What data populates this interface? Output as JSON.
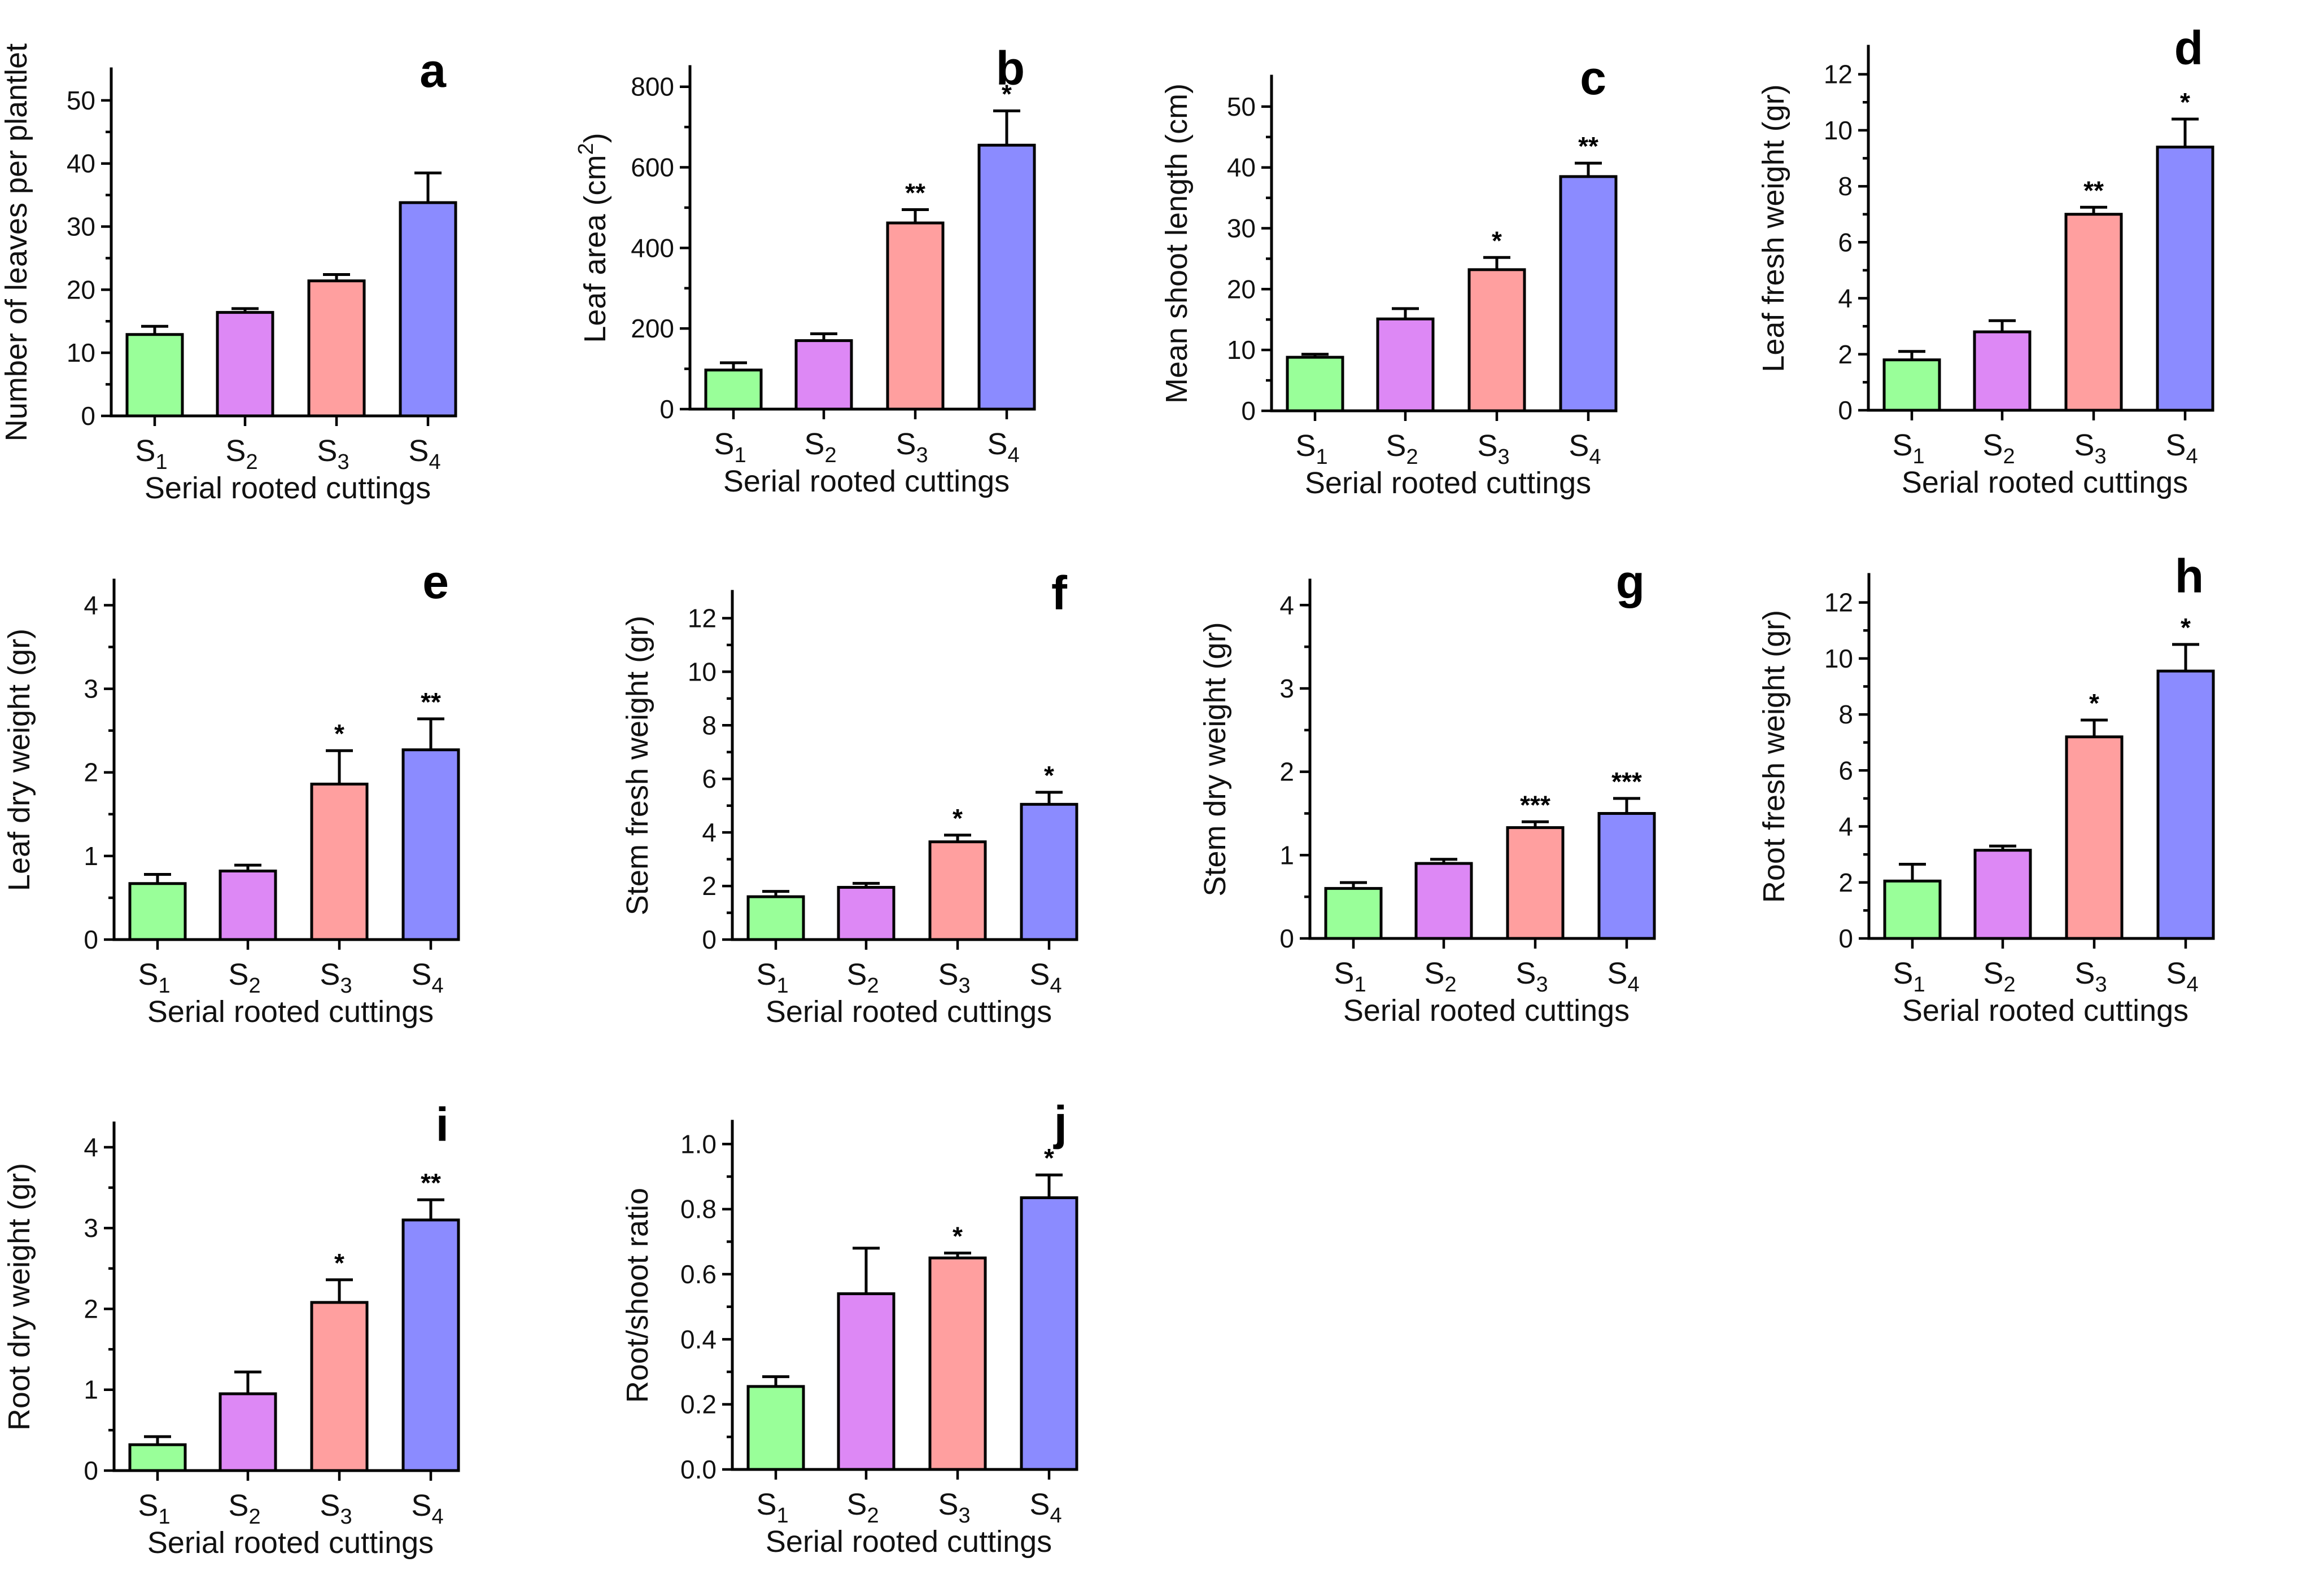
{
  "colors": {
    "S1": "#99ff99",
    "S2": "#dd88f5",
    "S3": "#ff9f9f",
    "S4": "#8b8bff"
  },
  "chart_data": [
    {
      "type": "bar",
      "panel": "a",
      "xlabel": "Serial rooted cuttings",
      "ylabel": "Number of leaves per plantlet",
      "categories": [
        "S1",
        "S2",
        "S3",
        "S4"
      ],
      "ylim": [
        0,
        55
      ],
      "yticks": [
        0,
        10,
        20,
        30,
        40,
        50
      ],
      "values": [
        12.9,
        16.4,
        21.4,
        33.8
      ],
      "errors": [
        1.3,
        0.6,
        1.0,
        4.7
      ],
      "sig": [
        "",
        "",
        "",
        ""
      ]
    },
    {
      "type": "bar",
      "panel": "b",
      "xlabel": "Serial rooted cuttings",
      "ylabel": "Leaf area (cm²)",
      "categories": [
        "S1",
        "S2",
        "S3",
        "S4"
      ],
      "ylim": [
        0,
        850
      ],
      "yticks": [
        0,
        200,
        400,
        600,
        800
      ],
      "values": [
        97,
        170,
        462,
        655
      ],
      "errors": [
        18,
        17,
        33,
        85
      ],
      "sig": [
        "",
        "",
        "**",
        "*"
      ]
    },
    {
      "type": "bar",
      "panel": "c",
      "xlabel": "Serial rooted cuttings",
      "ylabel": "Mean shoot length (cm)",
      "categories": [
        "S1",
        "S2",
        "S3",
        "S4"
      ],
      "ylim": [
        0,
        55
      ],
      "yticks": [
        0,
        10,
        20,
        30,
        40,
        50
      ],
      "values": [
        8.8,
        15.1,
        23.2,
        38.5
      ],
      "errors": [
        0.5,
        1.7,
        2.0,
        2.2
      ],
      "sig": [
        "",
        "",
        "*",
        "**"
      ]
    },
    {
      "type": "bar",
      "panel": "d",
      "xlabel": "Serial rooted cuttings",
      "ylabel": "Leaf fresh weight (gr)",
      "categories": [
        "S1",
        "S2",
        "S3",
        "S4"
      ],
      "ylim": [
        0,
        13
      ],
      "yticks": [
        0,
        2,
        4,
        6,
        8,
        10,
        12
      ],
      "values": [
        1.8,
        2.8,
        7.0,
        9.4
      ],
      "errors": [
        0.3,
        0.4,
        0.25,
        1.0
      ],
      "sig": [
        "",
        "",
        "**",
        "*"
      ]
    },
    {
      "type": "bar",
      "panel": "e",
      "xlabel": "Serial rooted cuttings",
      "ylabel": "Leaf dry weight (gr)",
      "categories": [
        "S1",
        "S2",
        "S3",
        "S4"
      ],
      "ylim": [
        0,
        4.3
      ],
      "yticks": [
        0,
        1,
        2,
        3,
        4
      ],
      "values": [
        0.67,
        0.82,
        1.86,
        2.27
      ],
      "errors": [
        0.11,
        0.07,
        0.4,
        0.37
      ],
      "sig": [
        "",
        "",
        "*",
        "**"
      ]
    },
    {
      "type": "bar",
      "panel": "f",
      "xlabel": "Serial rooted cuttings",
      "ylabel": "Stem fresh weight (gr)",
      "categories": [
        "S1",
        "S2",
        "S3",
        "S4"
      ],
      "ylim": [
        0,
        13
      ],
      "yticks": [
        0,
        2,
        4,
        6,
        8,
        10,
        12
      ],
      "values": [
        1.6,
        1.95,
        3.65,
        5.05
      ],
      "errors": [
        0.2,
        0.15,
        0.25,
        0.45
      ],
      "sig": [
        "",
        "",
        "*",
        "*"
      ]
    },
    {
      "type": "bar",
      "panel": "g",
      "xlabel": "Serial rooted cuttings",
      "ylabel": "Stem dry weight (gr)",
      "categories": [
        "S1",
        "S2",
        "S3",
        "S4"
      ],
      "ylim": [
        0,
        4.3
      ],
      "yticks": [
        0,
        1,
        2,
        3,
        4
      ],
      "values": [
        0.6,
        0.9,
        1.33,
        1.5
      ],
      "errors": [
        0.07,
        0.05,
        0.07,
        0.18
      ],
      "sig": [
        "",
        "",
        "***",
        "***"
      ]
    },
    {
      "type": "bar",
      "panel": "h",
      "xlabel": "Serial rooted cuttings",
      "ylabel": "Root fresh weight (gr)",
      "categories": [
        "S1",
        "S2",
        "S3",
        "S4"
      ],
      "ylim": [
        0,
        13
      ],
      "yticks": [
        0,
        2,
        4,
        6,
        8,
        10,
        12
      ],
      "values": [
        2.05,
        3.15,
        7.2,
        9.55
      ],
      "errors": [
        0.6,
        0.15,
        0.6,
        0.95
      ],
      "sig": [
        "",
        "",
        "*",
        "*"
      ]
    },
    {
      "type": "bar",
      "panel": "i",
      "xlabel": "Serial rooted cuttings",
      "ylabel": "Root dry weight (gr)",
      "categories": [
        "S1",
        "S2",
        "S3",
        "S4"
      ],
      "ylim": [
        0,
        4.3
      ],
      "yticks": [
        0,
        1,
        2,
        3,
        4
      ],
      "values": [
        0.32,
        0.95,
        2.08,
        3.1
      ],
      "errors": [
        0.1,
        0.27,
        0.28,
        0.25
      ],
      "sig": [
        "",
        "",
        "*",
        "**"
      ]
    },
    {
      "type": "bar",
      "panel": "j",
      "xlabel": "Serial rooted cuttings",
      "ylabel": "Root/shoot ratio",
      "categories": [
        "S1",
        "S2",
        "S3",
        "S4"
      ],
      "ylim": [
        0,
        1.07
      ],
      "yticks": [
        0.0,
        0.2,
        0.4,
        0.6,
        0.8,
        1.0
      ],
      "ytick_decimals": 1,
      "values": [
        0.255,
        0.54,
        0.65,
        0.835
      ],
      "errors": [
        0.03,
        0.14,
        0.015,
        0.07
      ],
      "sig": [
        "",
        "",
        "*",
        "*"
      ]
    }
  ]
}
